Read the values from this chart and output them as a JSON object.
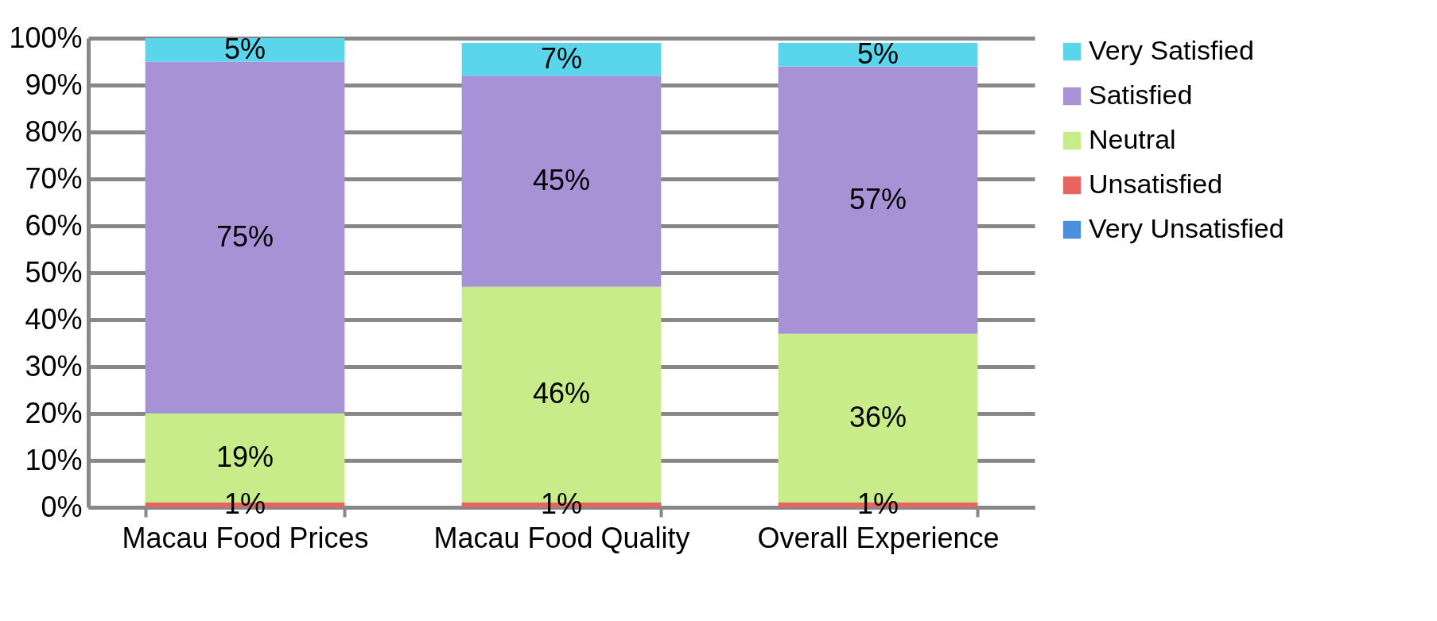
{
  "chart_data": {
    "type": "bar",
    "stacked": true,
    "categories": [
      "Macau Food Prices",
      "Macau Food Quality",
      "Overall Experience"
    ],
    "series": [
      {
        "name": "Very Unsatisfied",
        "color": "#4a8fdc",
        "values": [
          0,
          0,
          0
        ],
        "value_labels": [
          null,
          null,
          null
        ]
      },
      {
        "name": "Unsatisfied",
        "color": "#e8645f",
        "values": [
          1,
          1,
          1
        ],
        "value_labels": [
          "1%",
          "1%",
          "1%"
        ]
      },
      {
        "name": "Neutral",
        "color": "#c8ec8a",
        "values": [
          19,
          46,
          36
        ],
        "value_labels": [
          "19%",
          "46%",
          "36%"
        ]
      },
      {
        "name": "Satisfied",
        "color": "#a892d6",
        "values": [
          75,
          45,
          57
        ],
        "value_labels": [
          "75%",
          "45%",
          "57%"
        ]
      },
      {
        "name": "Very Satisfied",
        "color": "#5ad6ec",
        "values": [
          5,
          7,
          5
        ],
        "value_labels": [
          "5%",
          "7%",
          "5%"
        ]
      }
    ],
    "ylim": [
      0,
      100
    ],
    "yticks": [
      {
        "value": 0,
        "label": "0%"
      },
      {
        "value": 10,
        "label": "10%"
      },
      {
        "value": 20,
        "label": "20%"
      },
      {
        "value": 30,
        "label": "30%"
      },
      {
        "value": 40,
        "label": "40%"
      },
      {
        "value": 50,
        "label": "50%"
      },
      {
        "value": 60,
        "label": "60%"
      },
      {
        "value": 70,
        "label": "70%"
      },
      {
        "value": 80,
        "label": "80%"
      },
      {
        "value": 90,
        "label": "90%"
      },
      {
        "value": 100,
        "label": "100%"
      }
    ],
    "grid": "y",
    "legend": "right"
  }
}
